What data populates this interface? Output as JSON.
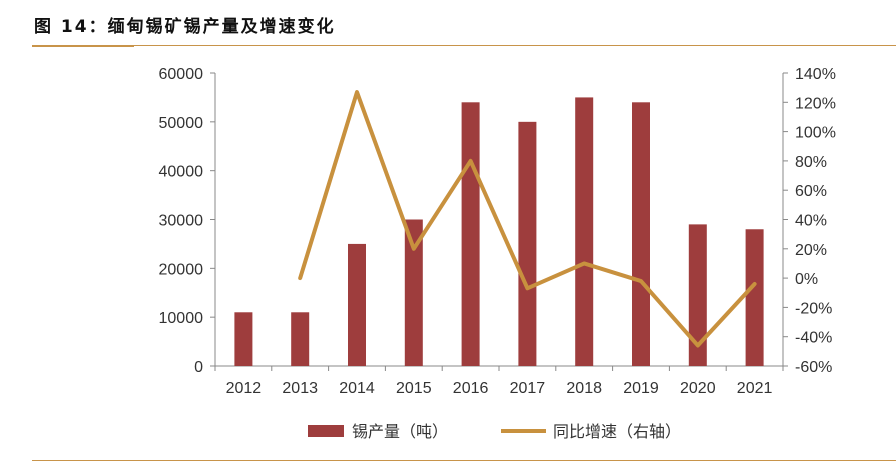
{
  "title": "图 14：缅甸锡矿锡产量及增速变化",
  "chart_data": {
    "type": "bar+line",
    "categories": [
      "2012",
      "2013",
      "2014",
      "2015",
      "2016",
      "2017",
      "2018",
      "2019",
      "2020",
      "2021"
    ],
    "series": [
      {
        "name": "锡产量（吨）",
        "type": "bar",
        "axis": "left",
        "color": "#9e3d3d",
        "values": [
          11000,
          11000,
          25000,
          30000,
          54000,
          50000,
          55000,
          54000,
          29000,
          28000
        ]
      },
      {
        "name": "同比增速（右轴）",
        "type": "line",
        "axis": "right",
        "color": "#c8913e",
        "values": [
          null,
          0,
          127,
          20,
          80,
          -7,
          10,
          -2,
          -46,
          -4
        ]
      }
    ],
    "left_axis": {
      "ylim": [
        0,
        60000
      ],
      "ticks": [
        "0",
        "10000",
        "20000",
        "30000",
        "40000",
        "50000",
        "60000"
      ]
    },
    "right_axis": {
      "ylim": [
        -60,
        140
      ],
      "unit": "%",
      "ticks": [
        "-60%",
        "-40%",
        "-20%",
        "0%",
        "20%",
        "40%",
        "60%",
        "80%",
        "100%",
        "120%",
        "140%"
      ]
    },
    "legend": "bottom",
    "grid": false
  }
}
